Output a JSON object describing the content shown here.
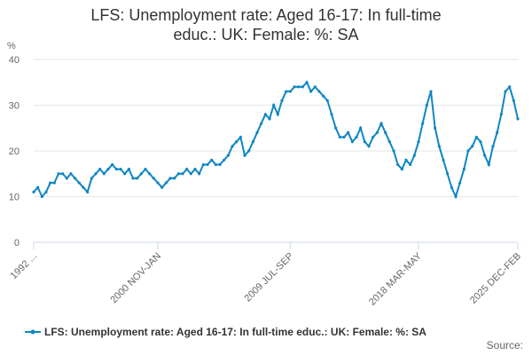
{
  "chart_data": {
    "type": "line",
    "title": "LFS: Unemployment rate: Aged 16-17: In full-time educ.: UK: Female: %: SA",
    "y_label": "%",
    "source": "Source:",
    "categories": [
      "1992 ...",
      null,
      null,
      null,
      null,
      null,
      null,
      null,
      null,
      null,
      null,
      null,
      null,
      null,
      null,
      null,
      null,
      null,
      null,
      null,
      null,
      null,
      null,
      null,
      null,
      null,
      null,
      null,
      null,
      null,
      "2000 NOV-JAN",
      null,
      null,
      null,
      null,
      null,
      null,
      null,
      null,
      null,
      null,
      null,
      null,
      null,
      null,
      null,
      null,
      null,
      null,
      null,
      null,
      null,
      null,
      null,
      null,
      null,
      null,
      null,
      null,
      null,
      null,
      null,
      "2009 JUL-SEP",
      null,
      null,
      null,
      null,
      null,
      null,
      null,
      null,
      null,
      null,
      null,
      null,
      null,
      null,
      null,
      null,
      null,
      null,
      null,
      null,
      null,
      null,
      null,
      null,
      null,
      null,
      null,
      null,
      null,
      null,
      "2018 MAR-MAY",
      null,
      null,
      null,
      null,
      null,
      null,
      null,
      null,
      null,
      null,
      null,
      null,
      null,
      null,
      null,
      null,
      null,
      null,
      null,
      null,
      null,
      null,
      null,
      "2025 DEC-FEB"
    ],
    "series": [
      {
        "name": "LFS: Unemployment rate: Aged 16-17: In full-time educ.: UK: Female: %: SA",
        "color": "#0f86c2",
        "values": [
          11,
          12,
          10,
          11,
          13,
          13,
          15,
          15,
          14,
          15,
          14,
          13,
          12,
          11,
          14,
          15,
          16,
          15,
          16,
          17,
          16,
          16,
          15,
          16,
          14,
          14,
          15,
          16,
          15,
          14,
          13,
          12,
          13,
          14,
          14,
          15,
          15,
          16,
          15,
          16,
          15,
          17,
          17,
          18,
          17,
          17,
          18,
          19,
          21,
          22,
          23,
          19,
          20,
          22,
          24,
          26,
          28,
          27,
          30,
          28,
          31,
          33,
          33,
          34,
          34,
          34,
          35,
          33,
          34,
          33,
          32,
          31,
          28,
          25,
          23,
          23,
          24,
          22,
          23,
          25,
          22,
          21,
          23,
          24,
          26,
          24,
          22,
          20,
          17,
          16,
          18,
          17,
          19,
          22,
          26,
          30,
          33,
          25,
          21,
          18,
          15,
          12,
          10,
          13,
          16,
          20,
          21,
          23,
          22,
          19,
          17,
          21,
          24,
          28,
          33,
          34,
          31,
          27
        ]
      }
    ],
    "ylim": [
      0,
      40
    ],
    "yticks": [
      0,
      10,
      20,
      30,
      40
    ],
    "grid": true
  }
}
